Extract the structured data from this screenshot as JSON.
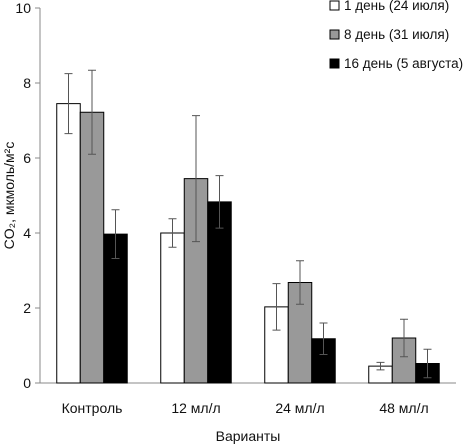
{
  "chart_data": {
    "type": "bar",
    "categories": [
      "Контроль",
      "12 мл/л",
      "24 мл/л",
      "48 мл/л"
    ],
    "series": [
      {
        "name": "1 день (24 июля)",
        "color": "#ffffff",
        "values": [
          7.45,
          4.0,
          2.03,
          0.45
        ],
        "errors": [
          0.8,
          0.38,
          0.62,
          0.1
        ]
      },
      {
        "name": "8 день (31 июля)",
        "color": "#999999",
        "values": [
          7.22,
          5.45,
          2.68,
          1.2
        ],
        "errors": [
          1.12,
          1.68,
          0.58,
          0.5
        ]
      },
      {
        "name": "16 день (5 августа)",
        "color": "#000000",
        "values": [
          3.97,
          4.83,
          1.18,
          0.52
        ],
        "errors": [
          0.65,
          0.7,
          0.42,
          0.38
        ]
      }
    ],
    "xlabel": "Варианты",
    "ylabel": "CO₂, мкмоль/м²с",
    "ylim": [
      0,
      10
    ],
    "yticks": [
      0,
      2,
      4,
      6,
      8,
      10
    ],
    "grid": false,
    "legend": "top-right"
  }
}
